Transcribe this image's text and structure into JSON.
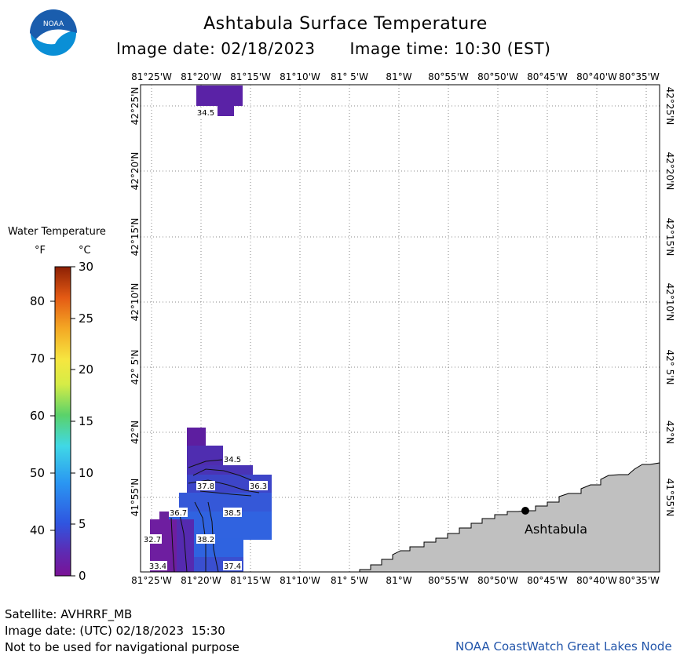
{
  "header": {
    "title": "Ashtabula Surface Temperature",
    "image_date": "Image date: 02/18/2023",
    "image_time": "Image time: 10:30 (EST)"
  },
  "logo": {
    "text": "NOAA",
    "colors": {
      "top": "#1a5dad",
      "bottom": "#0a8fd6",
      "bird": "#ffffff"
    }
  },
  "map": {
    "lon_ticks": [
      "81°25'W",
      "81°20'W",
      "81°15'W",
      "81°10'W",
      "81° 5'W",
      "81°W",
      "80°55'W",
      "80°50'W",
      "80°45'W",
      "80°40'W",
      "80°35'W"
    ],
    "lat_ticks": [
      "42°25'N",
      "42°20'N",
      "42°15'N",
      "42°10'N",
      "42° 5'N",
      "42°N",
      "41°55'N"
    ],
    "land_color": "#c0c0c0",
    "city": {
      "name": "Ashtabula"
    },
    "contour_labels": [
      "34.5",
      "34.5",
      "37.8",
      "36.3",
      "36.7",
      "38.5",
      "32.7",
      "38.2",
      "33.4",
      "37.4"
    ]
  },
  "legend": {
    "title": "Water Temperature",
    "unit_f": "°F",
    "unit_c": "°C",
    "f_labels": [
      "80",
      "70",
      "60",
      "50",
      "40"
    ],
    "c_labels": [
      "30",
      "25",
      "20",
      "15",
      "10",
      "5",
      "0"
    ]
  },
  "footer": {
    "satellite": "Satellite: AVHRRF_MB",
    "utc_date": "Image date: (UTC) 02/18/2023  15:30",
    "disclaimer": "Not to be used for navigational purpose",
    "credit": "NOAA CoastWatch Great Lakes Node"
  }
}
